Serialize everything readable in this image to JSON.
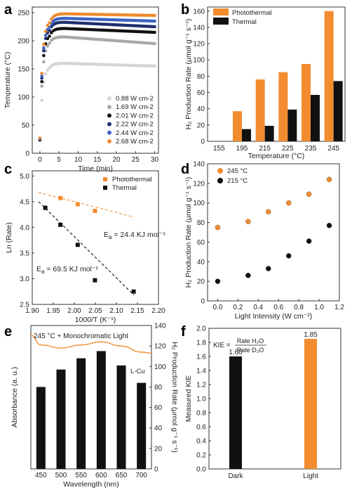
{
  "chart_data": [
    {
      "panel": "a",
      "type": "scatter",
      "xlabel": "Time (min)",
      "ylabel": "Temperature (°C)",
      "xlim": [
        -2,
        31
      ],
      "ylim": [
        0,
        260
      ],
      "xticks": [
        0,
        5,
        10,
        15,
        20,
        25,
        30
      ],
      "yticks": [
        0,
        50,
        100,
        150,
        200,
        250
      ],
      "legend_position": "bottom-right",
      "series": [
        {
          "name": "0.88 W cm-2",
          "color": "#d4d4d4",
          "start": 22,
          "plateau": 160,
          "end": 155,
          "rise_time": 2.4
        },
        {
          "name": "1.69 W cm-2",
          "color": "#a8a8a8",
          "start": 23,
          "plateau": 207,
          "end": 195,
          "rise_time": 2.4
        },
        {
          "name": "2.01 W cm-2",
          "color": "#111111",
          "start": 24,
          "plateau": 222,
          "end": 215,
          "rise_time": 2.5
        },
        {
          "name": "2.22 W cm-2",
          "color": "#1f2f6e",
          "start": 25,
          "plateau": 233,
          "end": 225,
          "rise_time": 2.5
        },
        {
          "name": "2.44 W cm-2",
          "color": "#3c63c2",
          "start": 26,
          "plateau": 240,
          "end": 235,
          "rise_time": 2.6
        },
        {
          "name": "2.68 W cm-2",
          "color": "#ef8a2e",
          "start": 27,
          "plateau": 248,
          "end": 245,
          "rise_time": 2.6
        }
      ]
    },
    {
      "panel": "b",
      "type": "bar",
      "xlabel": "Temperature (°C)",
      "ylabel": "H₂ Production Rate (μmol g⁻¹ s⁻¹)",
      "categories": [
        "155",
        "195",
        "215",
        "225",
        "235",
        "245"
      ],
      "ylim": [
        0,
        165
      ],
      "yticks": [
        0,
        20,
        40,
        60,
        80,
        100,
        120,
        140,
        160
      ],
      "legend_position": "top-left",
      "series": [
        {
          "name": "Photothermal",
          "color": "#f28c2f",
          "values": [
            0,
            37,
            76,
            85,
            95,
            160
          ]
        },
        {
          "name": "Thermal",
          "color": "#111111",
          "values": [
            0,
            15,
            19,
            39,
            57,
            74
          ]
        }
      ]
    },
    {
      "panel": "c",
      "type": "scatter",
      "xlabel": "1000/T (K⁻¹)",
      "ylabel": "Ln (Rate)",
      "xlim": [
        1.9,
        2.2
      ],
      "ylim": [
        2.5,
        5.1
      ],
      "xticks": [
        1.9,
        1.95,
        2.0,
        2.05,
        2.1,
        2.15,
        2.2
      ],
      "ytick_labels": [
        "2.5",
        "3.0",
        "3.5",
        "4.0",
        "4.5",
        "5.0"
      ],
      "legend_position": "top-right",
      "series": [
        {
          "name": "Photothermal",
          "color": "#f28c2f",
          "x": [
            1.967,
            2.008,
            2.049
          ],
          "y": [
            4.57,
            4.45,
            4.32
          ],
          "fit": {
            "x": [
              1.915,
              2.142
            ],
            "y": [
              4.68,
              4.2
            ]
          }
        },
        {
          "name": "Thermal",
          "color": "#111111",
          "x": [
            1.931,
            1.967,
            2.008,
            2.049,
            2.141
          ],
          "y": [
            4.38,
            4.05,
            3.66,
            2.97,
            2.75
          ],
          "fit": {
            "x": [
              1.915,
              2.142
            ],
            "y": [
              4.5,
              2.68
            ]
          }
        }
      ],
      "annotations": [
        {
          "text_pre": "E",
          "sub": "a",
          "text_post": " = 24.4 KJ mol⁻¹",
          "color": "#f28c2f"
        },
        {
          "text_pre": "E",
          "sub": "a",
          "text_post": " = 69.5 KJ mol⁻¹",
          "color": "#111111"
        }
      ]
    },
    {
      "panel": "d",
      "type": "scatter",
      "xlabel": "Light Intensity (W cm⁻²)",
      "ylabel": "H₂ Production Rate (μmol g⁻¹ s⁻¹)",
      "xlim": [
        -0.1,
        1.2
      ],
      "ylim": [
        0,
        140
      ],
      "xticks": [
        0.0,
        0.2,
        0.4,
        0.6,
        0.8,
        1.0,
        1.2
      ],
      "yticks": [
        0,
        20,
        40,
        60,
        80,
        100,
        120,
        140
      ],
      "legend_position": "top-left",
      "series": [
        {
          "name": "245 °C",
          "color": "#f28c2f",
          "x": [
            0,
            0.3,
            0.5,
            0.7,
            0.9,
            1.1
          ],
          "y": [
            75,
            81,
            91,
            100,
            109,
            124
          ]
        },
        {
          "name": "215 °C",
          "color": "#111111",
          "x": [
            0,
            0.3,
            0.5,
            0.7,
            0.9,
            1.1
          ],
          "y": [
            20,
            26,
            33,
            46,
            61,
            77
          ]
        }
      ]
    },
    {
      "panel": "e",
      "type": "bar",
      "xlabel": "Wavelength (nm)",
      "ylabel_left": "Absorbance (a. u.)",
      "ylabel_right": "H₂ Production Rate (μmol g⁻¹ s⁻¹)",
      "title": "245 °C + Monochromatic Light",
      "curve_label": "L-Cu",
      "categories": [
        "450",
        "500",
        "550",
        "600",
        "650",
        "700"
      ],
      "values": [
        80,
        97,
        108,
        115,
        101,
        84
      ],
      "bar_color": "#111111",
      "ylim_right": [
        0,
        140
      ],
      "yticks_right": [
        0,
        20,
        40,
        60,
        80,
        100,
        120,
        140
      ],
      "absorbance_curve": {
        "x": [
          425,
          450,
          500,
          550,
          600,
          650,
          700,
          725
        ],
        "y": [
          130.5,
          121,
          118,
          121,
          124,
          120,
          114,
          113
        ]
      },
      "curve_color": "#f28c2f"
    },
    {
      "panel": "f",
      "type": "bar",
      "xlabel": "",
      "ylabel": "Measured KIE",
      "categories": [
        "Dark",
        "Light"
      ],
      "values": [
        1.6,
        1.85
      ],
      "value_labels": [
        "1.60",
        "1.85"
      ],
      "colors": [
        "#111111",
        "#f28c2f"
      ],
      "ylim": [
        0,
        2.0
      ],
      "yticks": [
        0.0,
        0.2,
        0.4,
        0.6,
        0.8,
        1.0,
        1.2,
        1.4,
        1.6,
        1.8,
        2.0
      ],
      "formula": {
        "lhs": "KIE = ",
        "numerator": "Rate H₂O",
        "denominator": "Rate D₂O"
      }
    }
  ],
  "panel_letters": [
    "a",
    "b",
    "c",
    "d",
    "e",
    "f"
  ]
}
